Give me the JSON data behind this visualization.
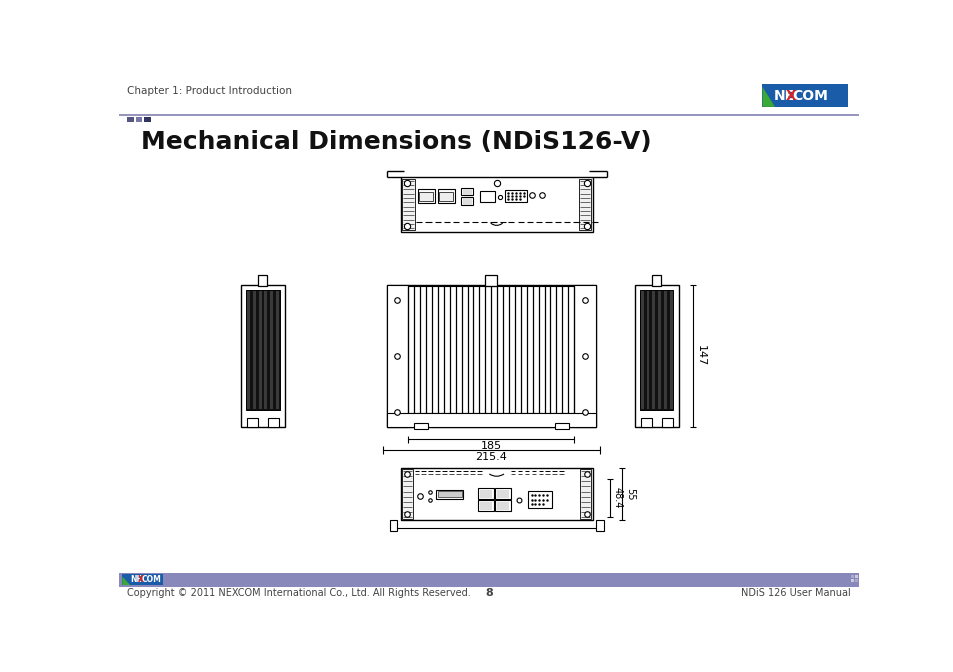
{
  "title": "Mechanical Dimensions (NDiS126-V)",
  "header_text": "Chapter 1: Product Introduction",
  "footer_left": "Copyright © 2011 NEXCOM International Co., Ltd. All Rights Reserved.",
  "footer_center": "8",
  "footer_right": "NDiS 126 User Manual",
  "dim_185": "185",
  "dim_2154": "215.4",
  "dim_147": "147",
  "dim_484": "48.4",
  "dim_55": "55",
  "bg_color": "#ffffff",
  "header_line_color": "#8080b0",
  "footer_bar_color": "#8888bb",
  "nexcom_logo_bg": "#1a5ca8",
  "accent_colors": [
    "#555580",
    "#7777aa",
    "#333360"
  ],
  "title_fontsize": 18,
  "header_fontsize": 8,
  "footer_fontsize": 7
}
